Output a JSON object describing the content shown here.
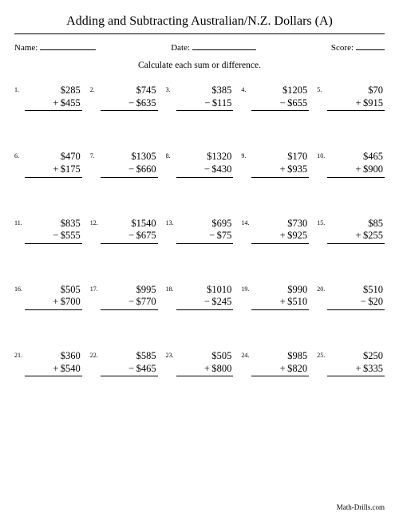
{
  "title": "Adding and Subtracting Australian/N.Z. Dollars (A)",
  "fields": {
    "name_label": "Name:",
    "date_label": "Date:",
    "score_label": "Score:",
    "name_line_width": 70,
    "date_line_width": 80,
    "score_line_width": 36
  },
  "instruction": "Calculate each sum or difference.",
  "currency_symbol": "$",
  "problems": [
    {
      "n": 1,
      "a": 285,
      "b": 455,
      "op": "+"
    },
    {
      "n": 2,
      "a": 745,
      "b": 635,
      "op": "−"
    },
    {
      "n": 3,
      "a": 385,
      "b": 115,
      "op": "−"
    },
    {
      "n": 4,
      "a": 1205,
      "b": 655,
      "op": "−"
    },
    {
      "n": 5,
      "a": 70,
      "b": 915,
      "op": "+"
    },
    {
      "n": 6,
      "a": 470,
      "b": 175,
      "op": "+"
    },
    {
      "n": 7,
      "a": 1305,
      "b": 660,
      "op": "−"
    },
    {
      "n": 8,
      "a": 1320,
      "b": 430,
      "op": "−"
    },
    {
      "n": 9,
      "a": 170,
      "b": 935,
      "op": "+"
    },
    {
      "n": 10,
      "a": 465,
      "b": 900,
      "op": "+"
    },
    {
      "n": 11,
      "a": 835,
      "b": 555,
      "op": "−"
    },
    {
      "n": 12,
      "a": 1540,
      "b": 675,
      "op": "−"
    },
    {
      "n": 13,
      "a": 695,
      "b": 75,
      "op": "−"
    },
    {
      "n": 14,
      "a": 730,
      "b": 925,
      "op": "+"
    },
    {
      "n": 15,
      "a": 85,
      "b": 255,
      "op": "+"
    },
    {
      "n": 16,
      "a": 505,
      "b": 700,
      "op": "+"
    },
    {
      "n": 17,
      "a": 995,
      "b": 770,
      "op": "−"
    },
    {
      "n": 18,
      "a": 1010,
      "b": 245,
      "op": "−"
    },
    {
      "n": 19,
      "a": 990,
      "b": 510,
      "op": "+"
    },
    {
      "n": 20,
      "a": 510,
      "b": 20,
      "op": "−"
    },
    {
      "n": 21,
      "a": 360,
      "b": 540,
      "op": "+"
    },
    {
      "n": 22,
      "a": 585,
      "b": 465,
      "op": "−"
    },
    {
      "n": 23,
      "a": 505,
      "b": 800,
      "op": "+"
    },
    {
      "n": 24,
      "a": 985,
      "b": 820,
      "op": "+"
    },
    {
      "n": 25,
      "a": 250,
      "b": 335,
      "op": "+"
    }
  ],
  "footer": "Math-Drills.com",
  "style": {
    "page_bg": "#ffffff",
    "text_color": "#000000",
    "rule_color": "#000000",
    "title_fontsize": 16,
    "body_fontsize": 12.5,
    "fields_fontsize": 11,
    "instruction_fontsize": 11.5,
    "pnum_fontsize": 8,
    "footer_fontsize": 9,
    "columns": 5,
    "rows": 5,
    "row_gap": 50,
    "col_gap": 10,
    "font_family": "Times New Roman, serif"
  }
}
